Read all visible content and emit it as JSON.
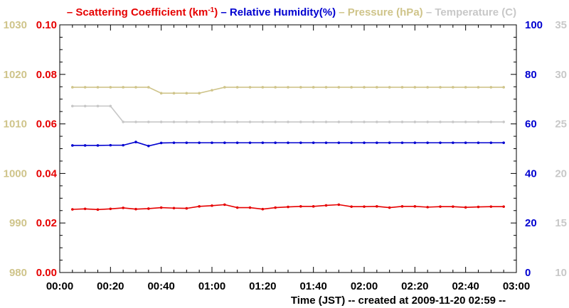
{
  "chart_data": {
    "type": "line",
    "legend": {
      "placement": "top",
      "entries": [
        {
          "key": "scattering",
          "dash": "–",
          "text": "Scattering Coefficient (km",
          "sup": "-1",
          "after": ")",
          "color": "#e60000"
        },
        {
          "key": "humidity",
          "dash": "–",
          "text": "Relative Humidity(%)",
          "sup": "",
          "after": "",
          "color": "#0000d0"
        },
        {
          "key": "pressure",
          "dash": "–",
          "text": "Pressure (hPa)",
          "sup": "",
          "after": "",
          "color": "#cfc48a"
        },
        {
          "key": "temperature",
          "dash": "–",
          "text": "Temperature (",
          "sup": "",
          "after": "C)",
          "color": "#c8c8c8"
        }
      ]
    },
    "xaxis": {
      "label": "Time (JST)   -- created at 2009-11-20 02:59 --",
      "range_minutes": [
        0,
        180
      ],
      "tick_labels": [
        "00:00",
        "00:20",
        "00:40",
        "01:00",
        "01:20",
        "01:40",
        "02:00",
        "02:20",
        "02:40",
        "03:00"
      ]
    },
    "axes": {
      "pressure": {
        "side": "left-outer",
        "color": "#cfc48a",
        "range": [
          980,
          1030
        ],
        "ticks": [
          "980",
          "990",
          "1000",
          "1010",
          "1020",
          "1030"
        ]
      },
      "scattering": {
        "side": "left-inner",
        "color": "#e60000",
        "range": [
          0,
          0.1
        ],
        "ticks": [
          "0.00",
          "0.02",
          "0.04",
          "0.06",
          "0.08",
          "0.10"
        ]
      },
      "humidity": {
        "side": "right-inner",
        "color": "#0000d0",
        "range": [
          0,
          100
        ],
        "ticks": [
          "0",
          "20",
          "40",
          "60",
          "80",
          "100"
        ]
      },
      "temperature": {
        "side": "right-outer",
        "color": "#c8c8c8",
        "range": [
          10,
          35
        ],
        "ticks": [
          "10",
          "15",
          "20",
          "25",
          "30",
          "35"
        ]
      }
    },
    "x_minutes": [
      5,
      10,
      15,
      20,
      25,
      30,
      35,
      40,
      45,
      50,
      55,
      60,
      65,
      70,
      75,
      80,
      85,
      90,
      95,
      100,
      105,
      110,
      115,
      120,
      125,
      130,
      135,
      140,
      145,
      150,
      155,
      160,
      165,
      170,
      175
    ],
    "series": [
      {
        "key": "pressure",
        "values": [
          1017.4,
          1017.4,
          1017.4,
          1017.4,
          1017.4,
          1017.4,
          1017.4,
          1016.2,
          1016.2,
          1016.2,
          1016.2,
          1016.8,
          1017.4,
          1017.4,
          1017.4,
          1017.4,
          1017.4,
          1017.4,
          1017.4,
          1017.4,
          1017.4,
          1017.4,
          1017.4,
          1017.4,
          1017.4,
          1017.4,
          1017.4,
          1017.4,
          1017.4,
          1017.4,
          1017.4,
          1017.4,
          1017.4,
          1017.4,
          1017.4
        ]
      },
      {
        "key": "humidity",
        "values": [
          51.3,
          51.3,
          51.3,
          51.4,
          51.4,
          52.7,
          51.1,
          52.3,
          52.4,
          52.4,
          52.4,
          52.4,
          52.4,
          52.4,
          52.4,
          52.4,
          52.4,
          52.4,
          52.4,
          52.4,
          52.4,
          52.4,
          52.4,
          52.4,
          52.4,
          52.4,
          52.4,
          52.4,
          52.4,
          52.4,
          52.4,
          52.4,
          52.4,
          52.4,
          52.4
        ]
      },
      {
        "key": "scattering",
        "values": [
          0.0255,
          0.0257,
          0.0254,
          0.0257,
          0.0261,
          0.0256,
          0.0258,
          0.0262,
          0.026,
          0.0259,
          0.0267,
          0.027,
          0.0274,
          0.0262,
          0.0262,
          0.0256,
          0.0262,
          0.0265,
          0.0267,
          0.0267,
          0.0271,
          0.0274,
          0.0266,
          0.0266,
          0.0267,
          0.0262,
          0.0267,
          0.0267,
          0.0264,
          0.0266,
          0.0266,
          0.0263,
          0.0265,
          0.0266,
          0.0266
        ]
      },
      {
        "key": "temperature",
        "values": [
          26.8,
          26.8,
          26.8,
          26.8,
          25.2,
          25.2,
          25.2,
          25.2,
          25.2,
          25.2,
          25.2,
          25.2,
          25.2,
          25.2,
          25.2,
          25.2,
          25.2,
          25.2,
          25.2,
          25.2,
          25.2,
          25.2,
          25.2,
          25.2,
          25.2,
          25.2,
          25.2,
          25.2,
          25.2,
          25.2,
          25.2,
          25.2,
          25.2,
          25.2,
          25.2
        ]
      }
    ]
  }
}
